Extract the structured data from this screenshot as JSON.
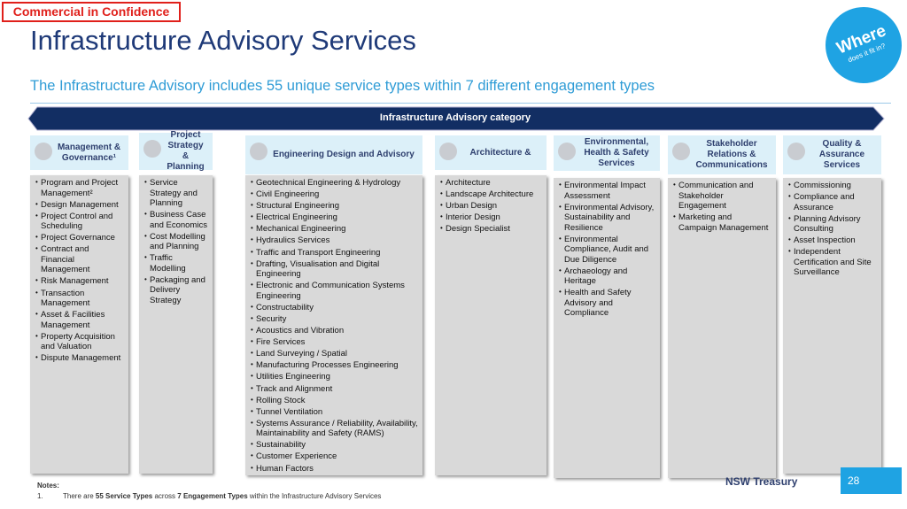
{
  "header": {
    "confidential": "Commercial in Confidence",
    "title": "Infrastructure Advisory Services",
    "subtitle": "The Infrastructure Advisory includes 55 unique service types within 7 different engagement types",
    "badge_main": "Where",
    "badge_sub": "does it fit in?"
  },
  "banner": "Infrastructure Advisory category",
  "columns": [
    {
      "title": "Management & Governance¹",
      "items": [
        "Program and Project Management²",
        "Design Management",
        "Project Control and Scheduling",
        "Project Governance",
        "Contract and Financial Management",
        "Risk Management",
        "Transaction Management",
        "Asset & Facilities Management",
        "Property Acquisition and Valuation",
        "Dispute Management"
      ]
    },
    {
      "title": "Project Strategy & Planning",
      "items": [
        "Service Strategy and Planning",
        "Business Case and Economics",
        "Cost Modelling and Planning",
        "Traffic Modelling",
        "Packaging and Delivery Strategy"
      ]
    },
    {
      "title": "Engineering Design and Advisory",
      "items": [
        "Geotechnical Engineering & Hydrology",
        "Civil Engineering",
        "Structural Engineering",
        "Electrical Engineering",
        "Mechanical Engineering",
        "Hydraulics Services",
        "Traffic and Transport Engineering",
        "Drafting, Visualisation and Digital Engineering",
        "Electronic and Communication Systems Engineering",
        "Constructability",
        "Security",
        "Acoustics and Vibration",
        "Fire Services",
        "Land Surveying / Spatial",
        "Manufacturing Processes Engineering",
        "Utilities Engineering",
        "Track and Alignment",
        "Rolling Stock",
        "Tunnel Ventilation",
        "Systems Assurance / Reliability, Availability, Maintainability and Safety (RAMS)",
        "Sustainability",
        "Customer Experience",
        "Human Factors"
      ]
    },
    {
      "title": "Architecture &",
      "items": [
        "Architecture",
        "Landscape Architecture",
        "Urban Design",
        "Interior Design",
        "Design Specialist"
      ]
    },
    {
      "title": "Environmental, Health & Safety Services",
      "items": [
        "Environmental Impact Assessment",
        "Environmental Advisory, Sustainability and Resilience",
        "Environmental Compliance, Audit and Due Diligence",
        "Archaeology and Heritage",
        "Health and Safety Advisory and Compliance"
      ]
    },
    {
      "title": "Stakeholder Relations & Communications",
      "items": [
        "Communication and Stakeholder Engagement",
        "Marketing and Campaign Management"
      ]
    },
    {
      "title": "Quality & Assurance Services",
      "items": [
        "Commissioning",
        "Compliance and Assurance",
        "Planning Advisory Consulting",
        "Asset Inspection",
        "Independent Certification and Site Surveillance"
      ]
    }
  ],
  "notes": {
    "heading": "Notes:",
    "number": "1.",
    "parts": [
      "There are ",
      "55 Service Types",
      " across ",
      "7 Engagement Types",
      " within the Infrastructure Advisory Services"
    ]
  },
  "footer": {
    "org": "NSW Treasury",
    "page": "28"
  }
}
